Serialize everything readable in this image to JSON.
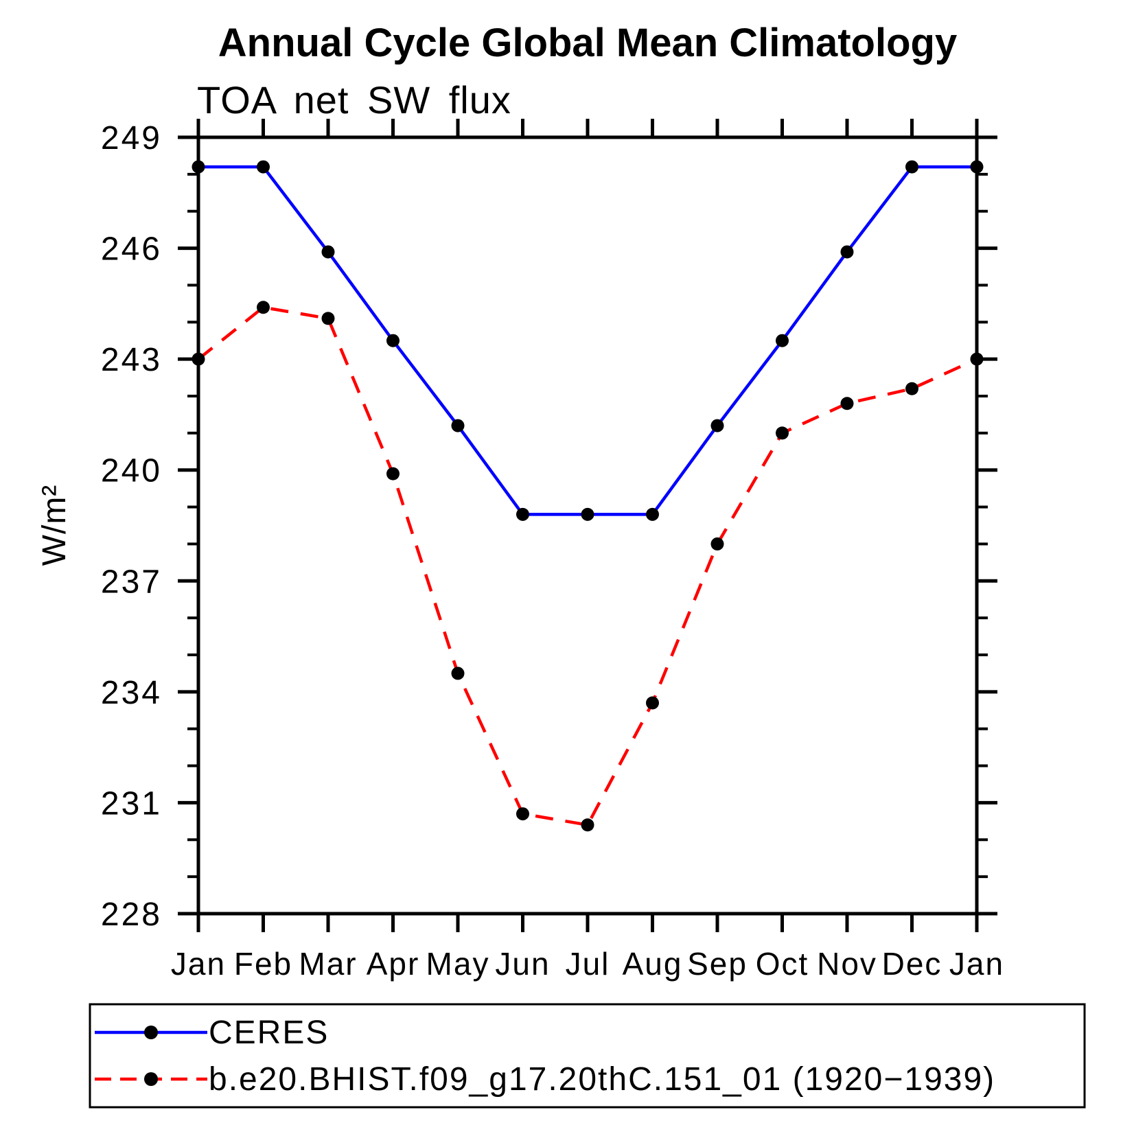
{
  "chart_data": {
    "type": "line",
    "title": "Annual Cycle Global Mean Climatology",
    "subtitle": "TOA net SW flux",
    "ylabel": "W/m²",
    "xlabel": "",
    "categories": [
      "Jan",
      "Feb",
      "Mar",
      "Apr",
      "May",
      "Jun",
      "Jul",
      "Aug",
      "Sep",
      "Oct",
      "Nov",
      "Dec",
      "Jan"
    ],
    "ylim": [
      228,
      249
    ],
    "y_major_step": 3,
    "y_minor_step": 1,
    "y_tick_labels": [
      "228",
      "231",
      "234",
      "237",
      "240",
      "243",
      "246",
      "249"
    ],
    "grid": false,
    "legend_position": "bottom-left-box",
    "background_color": "#ffffff",
    "axis_color": "#000000",
    "marker_color": "#000000",
    "series": [
      {
        "name": "CERES",
        "color": "#0000ff",
        "style": "solid",
        "marker": "filled-circle",
        "values": [
          248.2,
          248.2,
          245.9,
          243.5,
          241.2,
          238.8,
          238.8,
          238.8,
          241.2,
          243.5,
          245.9,
          248.2,
          248.2
        ]
      },
      {
        "name": "b.e20.BHIST.f09_g17.20thC.151_01 (1920−1939)",
        "color": "#ff0000",
        "style": "dashed",
        "marker": "filled-circle",
        "values": [
          243.0,
          244.4,
          244.1,
          239.9,
          234.5,
          230.7,
          230.4,
          233.7,
          238.0,
          241.0,
          241.8,
          242.2,
          243.0
        ]
      }
    ]
  }
}
